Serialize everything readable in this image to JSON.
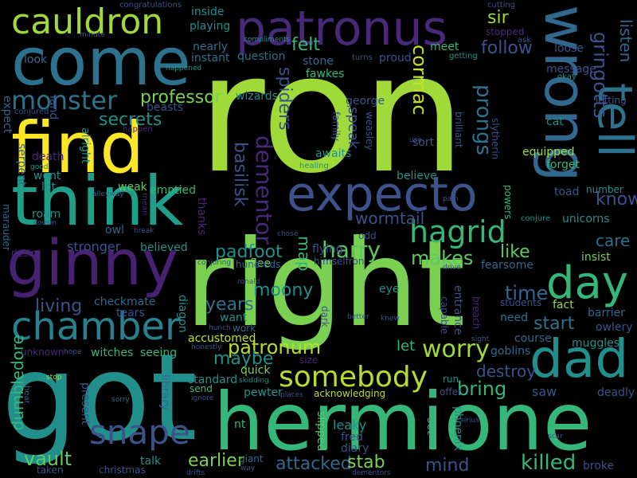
{
  "palette": {
    "background": "#000000",
    "dark_purple": "#440154",
    "indigo": "#3b528b",
    "blue": "#31688e",
    "teal": "#21908c",
    "green": "#35b779",
    "light_green": "#5ec962",
    "lime": "#a0da39",
    "yellow": "#fde725"
  },
  "words": [
    "ron",
    "right",
    "got",
    "hermione",
    "come",
    "find",
    "think",
    "patronus",
    "wrong",
    "ginny",
    "expecto",
    "tell",
    "cauldron",
    "chamber",
    "dad",
    "day",
    "snape",
    "somebody",
    "hagrid",
    "harry",
    "monster",
    "secrets",
    "professor",
    "dementor",
    "basilisk",
    "spiders",
    "prongs",
    "cormac",
    "gringotts",
    "listen",
    "felt",
    "follow",
    "sir",
    "makes",
    "worry",
    "living",
    "years",
    "patronum",
    "maybe",
    "vault",
    "earlier",
    "attacked",
    "stab",
    "mind",
    "killed",
    "destroy",
    "bring",
    "saw",
    "start",
    "time",
    "like",
    "care",
    "know",
    "padfoot",
    "moony",
    "map",
    "wormtail",
    "speak",
    "dumbledore",
    "stronger",
    "let",
    "accustomed",
    "flying",
    "unicorns",
    "equipped",
    "forget",
    "message",
    "letting",
    "cat",
    "muggles",
    "course",
    "goblins",
    "need",
    "fact",
    "barrier",
    "owlery",
    "insist",
    "fearsome",
    "students",
    "entrance",
    "breach",
    "capable",
    "leaky",
    "fred",
    "diary",
    "phoenix",
    "slipped",
    "set",
    "acknowledging",
    "quick",
    "pewter",
    "giant",
    "witches",
    "seeing",
    "checkmate",
    "tears",
    "diagon",
    "library",
    "present",
    "christmas",
    "taken",
    "talk",
    "standard",
    "send",
    "emptied",
    "weak",
    "believed",
    "thanks",
    "flee",
    "hundreds",
    "himselfron",
    "odd",
    "eye",
    "dark",
    "want",
    "work",
    "nt",
    "owl",
    "roam",
    "lot",
    "went",
    "death",
    "serpent",
    "expect",
    "land",
    "conjured",
    "alright",
    "beasts",
    "happen",
    "look",
    "wizards",
    "george",
    "family",
    "weasley",
    "brilliant",
    "slytherin",
    "sort",
    "awaits",
    "believe",
    "stone",
    "fawkes",
    "question",
    "nearly",
    "instant",
    "playing",
    "inside",
    "cutting",
    "compliments",
    "turns",
    "proud",
    "meet",
    "getting",
    "stopped",
    "ask",
    "loose",
    "okay",
    "congratulations",
    "minute",
    "happened",
    "healing",
    "mean",
    "alleyway",
    "break",
    "chose",
    "pain",
    "powers",
    "conjure",
    "number",
    "toad",
    "marauder",
    "desire",
    "cousin",
    "conjuring",
    "ronald",
    "unknown",
    "hope",
    "hunch",
    "honestly",
    "better",
    "knew",
    "drive",
    "sight",
    "size",
    "run",
    "offer",
    "stop",
    "sorry",
    "hear",
    "ignore",
    "places",
    "skidding",
    "sirius",
    "drifts",
    "way",
    "dementors",
    "scar",
    "broke",
    "deadly",
    "use",
    "good"
  ]
}
